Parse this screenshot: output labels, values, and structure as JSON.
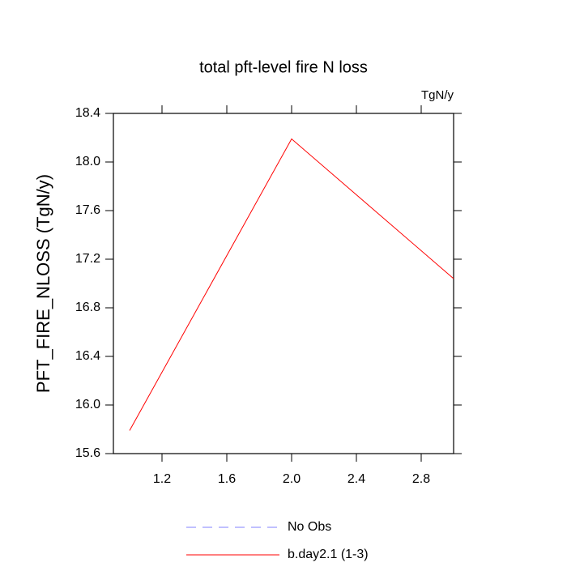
{
  "chart_data": {
    "type": "line",
    "title": "total pft-level fire N loss",
    "units_label": "TgN/y",
    "y_label": "PFT_FIRE_NLOSS  (TgN/y)",
    "x": [
      1,
      2,
      3
    ],
    "series": [
      {
        "name": "No Obs",
        "color": "#8080ff",
        "dashed": true,
        "values": [
          null,
          null,
          null
        ]
      },
      {
        "name": "b.day2.1 (1-3)",
        "color": "#ff0000",
        "dashed": false,
        "values": [
          15.79,
          18.19,
          17.04
        ]
      }
    ],
    "xlim": [
      0.9,
      3.0
    ],
    "xticks": [
      1.2,
      1.6,
      {
        "value": 2,
        "label": "2.0"
      },
      2.4,
      2.8
    ],
    "ylim": [
      15.6,
      18.4
    ],
    "yticks": [
      15.6,
      {
        "value": 16,
        "label": "16.0"
      },
      16.4,
      16.8,
      17.2,
      17.6,
      {
        "value": 18,
        "label": "18.0"
      },
      18.4
    ]
  }
}
